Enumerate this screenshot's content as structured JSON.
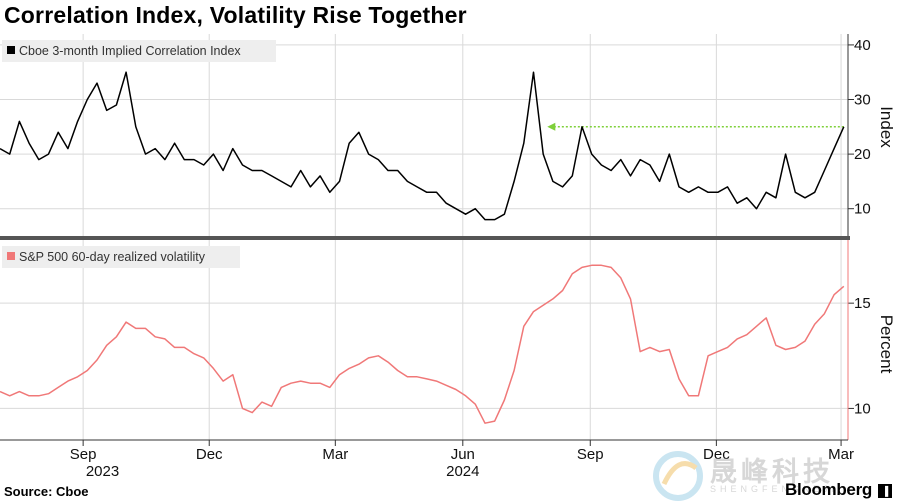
{
  "title": "Correlation Index, Volatility Rise Together",
  "source": "Source: Cboe",
  "brand": "Bloomberg",
  "brand_mark": "▐",
  "watermark": {
    "text": "晟峰科技",
    "sub": "SHENGFENGKEJI"
  },
  "colors": {
    "series1": "#000000",
    "series2": "#f07878",
    "dotted_line": "#7fd03a",
    "divider": "#555555",
    "grid": "#d9d9d9"
  },
  "chart_data": [
    {
      "type": "line",
      "legend": "Cboe 3-month Implied Correlation Index",
      "ylabel": "Index",
      "yticks": [
        10,
        20,
        30,
        40
      ],
      "ylim": [
        5,
        42
      ],
      "xlim": [
        "2023-07-03",
        "2025-03-06"
      ],
      "annotation": {
        "type": "dotted-arrow",
        "y": 25,
        "x_from": "2025-03-03",
        "x_to": "2024-08-01"
      },
      "series": [
        {
          "x": [
            "2023-07-03",
            "2023-07-10",
            "2023-07-17",
            "2023-07-24",
            "2023-07-31",
            "2023-08-07",
            "2023-08-14",
            "2023-08-21",
            "2023-08-28",
            "2023-09-04",
            "2023-09-11",
            "2023-09-18",
            "2023-09-25",
            "2023-10-02",
            "2023-10-09",
            "2023-10-16",
            "2023-10-23",
            "2023-10-30",
            "2023-11-06",
            "2023-11-13",
            "2023-11-20",
            "2023-11-27",
            "2023-12-04",
            "2023-12-11",
            "2023-12-18",
            "2023-12-25",
            "2024-01-01",
            "2024-01-08",
            "2024-01-15",
            "2024-01-22",
            "2024-01-29",
            "2024-02-05",
            "2024-02-12",
            "2024-02-19",
            "2024-02-26",
            "2024-03-04",
            "2024-03-11",
            "2024-03-18",
            "2024-03-25",
            "2024-04-01",
            "2024-04-08",
            "2024-04-15",
            "2024-04-22",
            "2024-04-29",
            "2024-05-06",
            "2024-05-13",
            "2024-05-20",
            "2024-05-27",
            "2024-06-03",
            "2024-06-10",
            "2024-06-17",
            "2024-06-24",
            "2024-07-01",
            "2024-07-08",
            "2024-07-15",
            "2024-07-22",
            "2024-07-29",
            "2024-08-05",
            "2024-08-12",
            "2024-08-19",
            "2024-08-26",
            "2024-09-02",
            "2024-09-09",
            "2024-09-16",
            "2024-09-23",
            "2024-09-30",
            "2024-10-07",
            "2024-10-14",
            "2024-10-21",
            "2024-10-28",
            "2024-11-04",
            "2024-11-11",
            "2024-11-18",
            "2024-11-25",
            "2024-12-02",
            "2024-12-09",
            "2024-12-16",
            "2024-12-23",
            "2024-12-30",
            "2025-01-06",
            "2025-01-13",
            "2025-01-20",
            "2025-01-27",
            "2025-02-03",
            "2025-02-10",
            "2025-02-17",
            "2025-02-24",
            "2025-03-03"
          ],
          "y": [
            21,
            20,
            26,
            22,
            19,
            20,
            24,
            21,
            26,
            30,
            33,
            28,
            29,
            35,
            25,
            20,
            21,
            19,
            22,
            19,
            19,
            18,
            20,
            17,
            21,
            18,
            17,
            17,
            16,
            15,
            14,
            17,
            14,
            16,
            13,
            15,
            22,
            24,
            20,
            19,
            17,
            17,
            15,
            14,
            13,
            13,
            11,
            10,
            9,
            10,
            8,
            8,
            9,
            15,
            22,
            35,
            20,
            15,
            14,
            16,
            25,
            20,
            18,
            17,
            19,
            16,
            19,
            18,
            15,
            20,
            14,
            13,
            14,
            13,
            13,
            14,
            11,
            12,
            10,
            13,
            12,
            20,
            13,
            12,
            13,
            17,
            21,
            25
          ]
        }
      ]
    },
    {
      "type": "line",
      "legend": "S&P 500 60-day realized volatility",
      "ylabel": "Percent",
      "yticks": [
        10,
        15
      ],
      "ylim": [
        8.5,
        18
      ],
      "xlim": [
        "2023-07-03",
        "2025-03-06"
      ],
      "xticks": [
        "2023-09-01",
        "2023-12-01",
        "2024-03-01",
        "2024-06-01",
        "2024-09-01",
        "2024-12-01",
        "2025-03-01"
      ],
      "xtick_labels": [
        "Sep",
        "Dec",
        "Mar",
        "Jun",
        "Sep",
        "Dec",
        "Mar"
      ],
      "year_labels": [
        {
          "x": "2023-09-15",
          "label": "2023"
        },
        {
          "x": "2024-06-01",
          "label": "2024"
        }
      ],
      "series": [
        {
          "x": [
            "2023-07-03",
            "2023-07-10",
            "2023-07-17",
            "2023-07-24",
            "2023-07-31",
            "2023-08-07",
            "2023-08-14",
            "2023-08-21",
            "2023-08-28",
            "2023-09-04",
            "2023-09-11",
            "2023-09-18",
            "2023-09-25",
            "2023-10-02",
            "2023-10-09",
            "2023-10-16",
            "2023-10-23",
            "2023-10-30",
            "2023-11-06",
            "2023-11-13",
            "2023-11-20",
            "2023-11-27",
            "2023-12-04",
            "2023-12-11",
            "2023-12-18",
            "2023-12-25",
            "2024-01-01",
            "2024-01-08",
            "2024-01-15",
            "2024-01-22",
            "2024-01-29",
            "2024-02-05",
            "2024-02-12",
            "2024-02-19",
            "2024-02-26",
            "2024-03-04",
            "2024-03-11",
            "2024-03-18",
            "2024-03-25",
            "2024-04-01",
            "2024-04-08",
            "2024-04-15",
            "2024-04-22",
            "2024-04-29",
            "2024-05-06",
            "2024-05-13",
            "2024-05-20",
            "2024-05-27",
            "2024-06-03",
            "2024-06-10",
            "2024-06-17",
            "2024-06-24",
            "2024-07-01",
            "2024-07-08",
            "2024-07-15",
            "2024-07-22",
            "2024-07-29",
            "2024-08-05",
            "2024-08-12",
            "2024-08-19",
            "2024-08-26",
            "2024-09-02",
            "2024-09-09",
            "2024-09-16",
            "2024-09-23",
            "2024-09-30",
            "2024-10-07",
            "2024-10-14",
            "2024-10-21",
            "2024-10-28",
            "2024-11-04",
            "2024-11-11",
            "2024-11-18",
            "2024-11-25",
            "2024-12-02",
            "2024-12-09",
            "2024-12-16",
            "2024-12-23",
            "2024-12-30",
            "2025-01-06",
            "2025-01-13",
            "2025-01-20",
            "2025-01-27",
            "2025-02-03",
            "2025-02-10",
            "2025-02-17",
            "2025-02-24",
            "2025-03-03"
          ],
          "y": [
            10.8,
            10.6,
            10.8,
            10.6,
            10.6,
            10.7,
            11.0,
            11.3,
            11.5,
            11.8,
            12.3,
            13.0,
            13.4,
            14.1,
            13.8,
            13.8,
            13.4,
            13.3,
            12.9,
            12.9,
            12.6,
            12.4,
            11.9,
            11.3,
            11.6,
            10.0,
            9.8,
            10.3,
            10.1,
            11.0,
            11.2,
            11.3,
            11.2,
            11.2,
            11.0,
            11.6,
            11.9,
            12.1,
            12.4,
            12.5,
            12.2,
            11.8,
            11.5,
            11.5,
            11.4,
            11.3,
            11.1,
            10.9,
            10.6,
            10.2,
            9.3,
            9.4,
            10.4,
            11.8,
            13.9,
            14.6,
            14.9,
            15.2,
            15.6,
            16.4,
            16.7,
            16.8,
            16.8,
            16.7,
            16.2,
            15.2,
            12.7,
            12.9,
            12.7,
            12.8,
            11.4,
            10.6,
            10.6,
            12.5,
            12.7,
            12.9,
            13.3,
            13.5,
            13.9,
            14.3,
            13.0,
            12.8,
            12.9,
            13.2,
            14.0,
            14.5,
            15.4,
            15.8
          ]
        }
      ]
    }
  ]
}
